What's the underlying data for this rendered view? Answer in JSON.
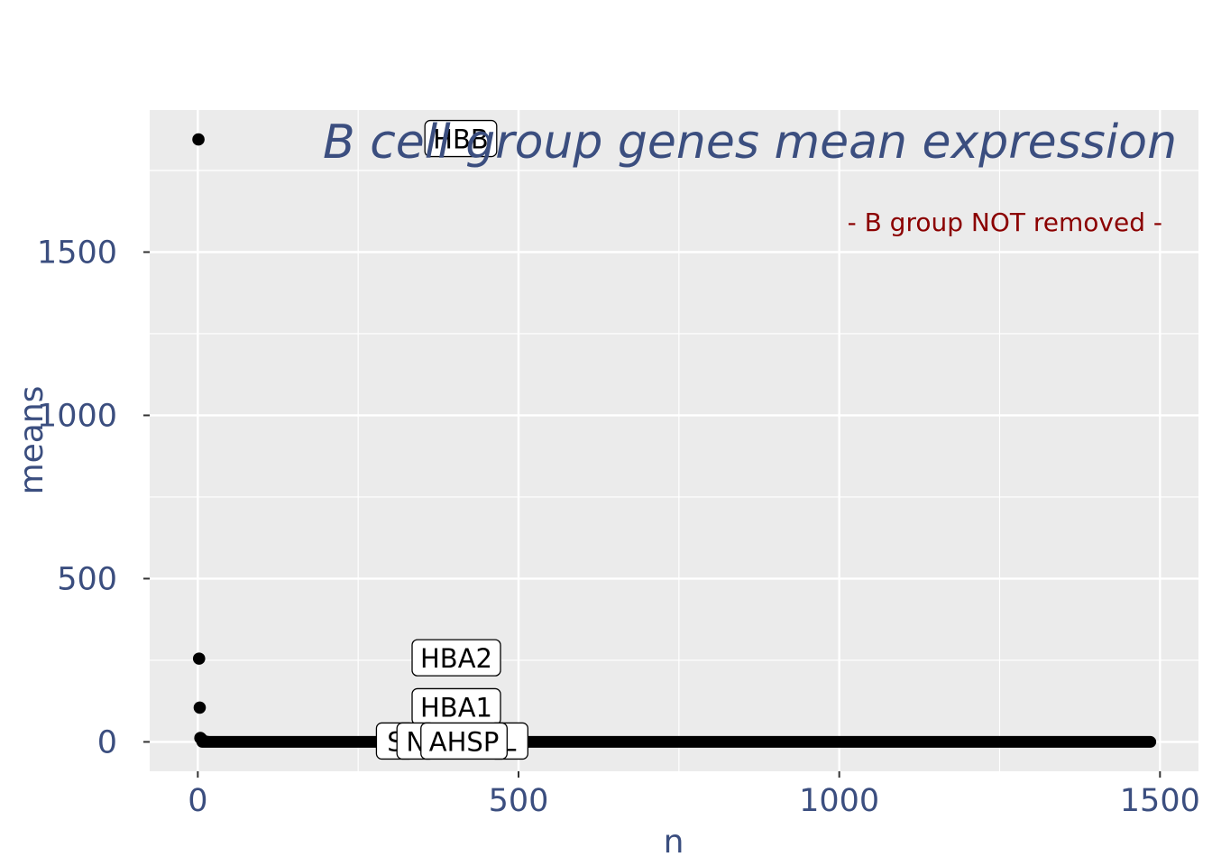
{
  "chart_data": {
    "type": "scatter",
    "title": "B cell group genes mean expression",
    "subtitle": "- B group NOT removed -",
    "xlabel": "n",
    "ylabel": "means",
    "xlim": [
      -75,
      1560
    ],
    "ylim": [
      -90,
      1935
    ],
    "xticks": [
      0,
      500,
      1000,
      1500
    ],
    "xtick_labels": [
      "0",
      "500",
      "1000",
      "1500"
    ],
    "yticks": [
      0,
      500,
      1000,
      1500
    ],
    "ytick_labels": [
      "0",
      "500",
      "1000",
      "1500"
    ],
    "grid": true,
    "legend": "none",
    "points": [
      {
        "x": 1,
        "y": 1845
      },
      {
        "x": 2,
        "y": 255
      },
      {
        "x": 3,
        "y": 105
      },
      {
        "x": 4,
        "y": 12
      },
      {
        "x": 5,
        "y": 10
      },
      {
        "x": 6,
        "y": 8
      }
    ],
    "tail": {
      "x_start": 7,
      "x_end": 1485,
      "y": 0
    },
    "labels": [
      {
        "text": "HBB",
        "x": 410,
        "y": 1845
      },
      {
        "text": "HBA2",
        "x": 403,
        "y": 255
      },
      {
        "text": "HBA1",
        "x": 403,
        "y": 105
      },
      {
        "text": "S",
        "x": 308,
        "y": 0
      },
      {
        "text": "N",
        "x": 340,
        "y": 0
      },
      {
        "text": "L",
        "x": 485,
        "y": 0
      },
      {
        "text": "AHSP",
        "x": 415,
        "y": 0
      }
    ],
    "colors": {
      "panel": "#ebebeb",
      "grid_major": "#ffffff",
      "text": "#3b4e7f",
      "subtitle": "#8b0000",
      "points": "#000000"
    }
  }
}
